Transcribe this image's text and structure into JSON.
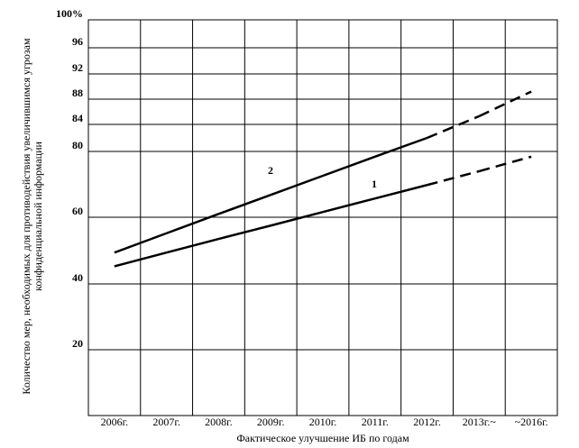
{
  "chart_data": {
    "type": "line",
    "y_label_lines": [
      "Количество мер, необходимых для противодействия увеличившимся угрозам",
      "конфиденциальной информации"
    ],
    "x_label": "Фактическое улучшение ИБ по годам",
    "categories": [
      "2006г.",
      "2007г.",
      "2008г.",
      "2009г.",
      "2010г.",
      "2011г.",
      "2012г.",
      "2013г.~",
      "~2016г."
    ],
    "series": [
      {
        "name": "1",
        "color": "#000000",
        "values": [
          45.3,
          49.4,
          53.5,
          57.5,
          61.6,
          65.7,
          69.8,
          74.0,
          78.4
        ],
        "styles": [
          "solid",
          "solid",
          "solid",
          "solid",
          "solid",
          "solid",
          "solid",
          "dashed",
          "dashed"
        ]
      },
      {
        "name": "2",
        "color": "#000000",
        "values": [
          49.4,
          55.2,
          61.0,
          66.8,
          72.6,
          78.4,
          82.0,
          85.3,
          89.2
        ],
        "styles": [
          "solid",
          "solid",
          "solid",
          "solid",
          "solid",
          "solid",
          "solid",
          "dashed",
          "dashed"
        ]
      }
    ],
    "ylim": [
      0,
      100
    ],
    "yticks": [
      20,
      40,
      60,
      80,
      84,
      88,
      92,
      96,
      {
        "value": 100,
        "label": "100%"
      }
    ],
    "grid": true
  }
}
